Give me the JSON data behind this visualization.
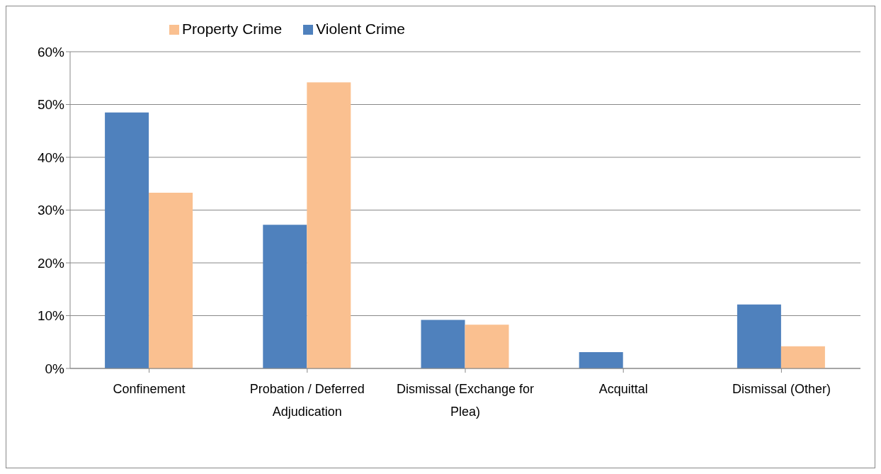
{
  "chart_data": {
    "type": "bar",
    "categories": [
      "Confinement",
      "Probation / Deferred Adjudication",
      "Dismissal (Exchange for Plea)",
      "Acquittal",
      "Dismissal (Other)"
    ],
    "series": [
      {
        "name": "Violent Crime",
        "color": "#4f81bd",
        "values": [
          48.5,
          27.2,
          9.2,
          3.1,
          12.1
        ]
      },
      {
        "name": "Property Crime",
        "color": "#fac090",
        "values": [
          33.3,
          54.2,
          8.3,
          0,
          4.2
        ]
      }
    ],
    "ylim": [
      0,
      60
    ],
    "yticks": [
      {
        "value": 0,
        "label": "0%"
      },
      {
        "value": 10,
        "label": "10%"
      },
      {
        "value": 20,
        "label": "20%"
      },
      {
        "value": 30,
        "label": "30%"
      },
      {
        "value": 40,
        "label": "40%"
      },
      {
        "value": 50,
        "label": "50%"
      },
      {
        "value": 60,
        "label": "60%"
      }
    ],
    "grid": "y",
    "legend": "top"
  }
}
